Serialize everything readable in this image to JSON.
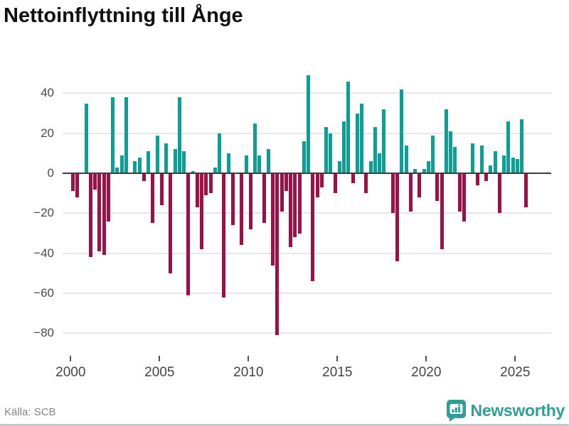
{
  "title": "Nettoinflyttning till Ånge",
  "source": "Källa: SCB",
  "brand": {
    "name": "Newsworthy",
    "color": "#2f9e98",
    "logo_icon": "bar-chart-badge-icon"
  },
  "chart_data": {
    "type": "bar",
    "title": "Nettoinflyttning till Ånge",
    "frequency": "quarterly",
    "start_period": "2000 Q1",
    "end_period": "2025 Q3",
    "x_tick_labels": [
      "2000",
      "2005",
      "2010",
      "2015",
      "2020",
      "2025"
    ],
    "y_ticks": [
      40,
      20,
      0,
      -20,
      -40,
      -60,
      -80
    ],
    "ylim": [
      -88,
      53
    ],
    "grid": true,
    "legend": "none",
    "positive_color": "#0aa096",
    "negative_color": "#9d1048",
    "values": [
      -9,
      -12,
      0,
      35,
      -42,
      -8,
      -39,
      -41,
      -24,
      38,
      3,
      9,
      38,
      0,
      6,
      8,
      -4,
      11,
      -25,
      19,
      -16,
      15,
      -50,
      12,
      38,
      11,
      -61,
      1,
      -17,
      -38,
      -11,
      -10,
      3,
      20,
      -62,
      10,
      -26,
      0,
      -36,
      9,
      -28,
      25,
      9,
      -25,
      12,
      -46,
      -81,
      -19,
      -9,
      -37,
      -32,
      -30,
      16,
      49,
      -54,
      -12,
      -7,
      23,
      20,
      -10,
      6,
      26,
      46,
      -5,
      30,
      35,
      -10,
      6,
      23,
      10,
      32,
      0,
      -20,
      -44,
      42,
      14,
      -19,
      2,
      -12,
      2,
      6,
      19,
      -14,
      -38,
      32,
      21,
      13,
      -19,
      -24,
      0,
      15,
      -6,
      14,
      -4,
      4,
      11,
      -20,
      9,
      26,
      8,
      7,
      27,
      -17
    ]
  }
}
